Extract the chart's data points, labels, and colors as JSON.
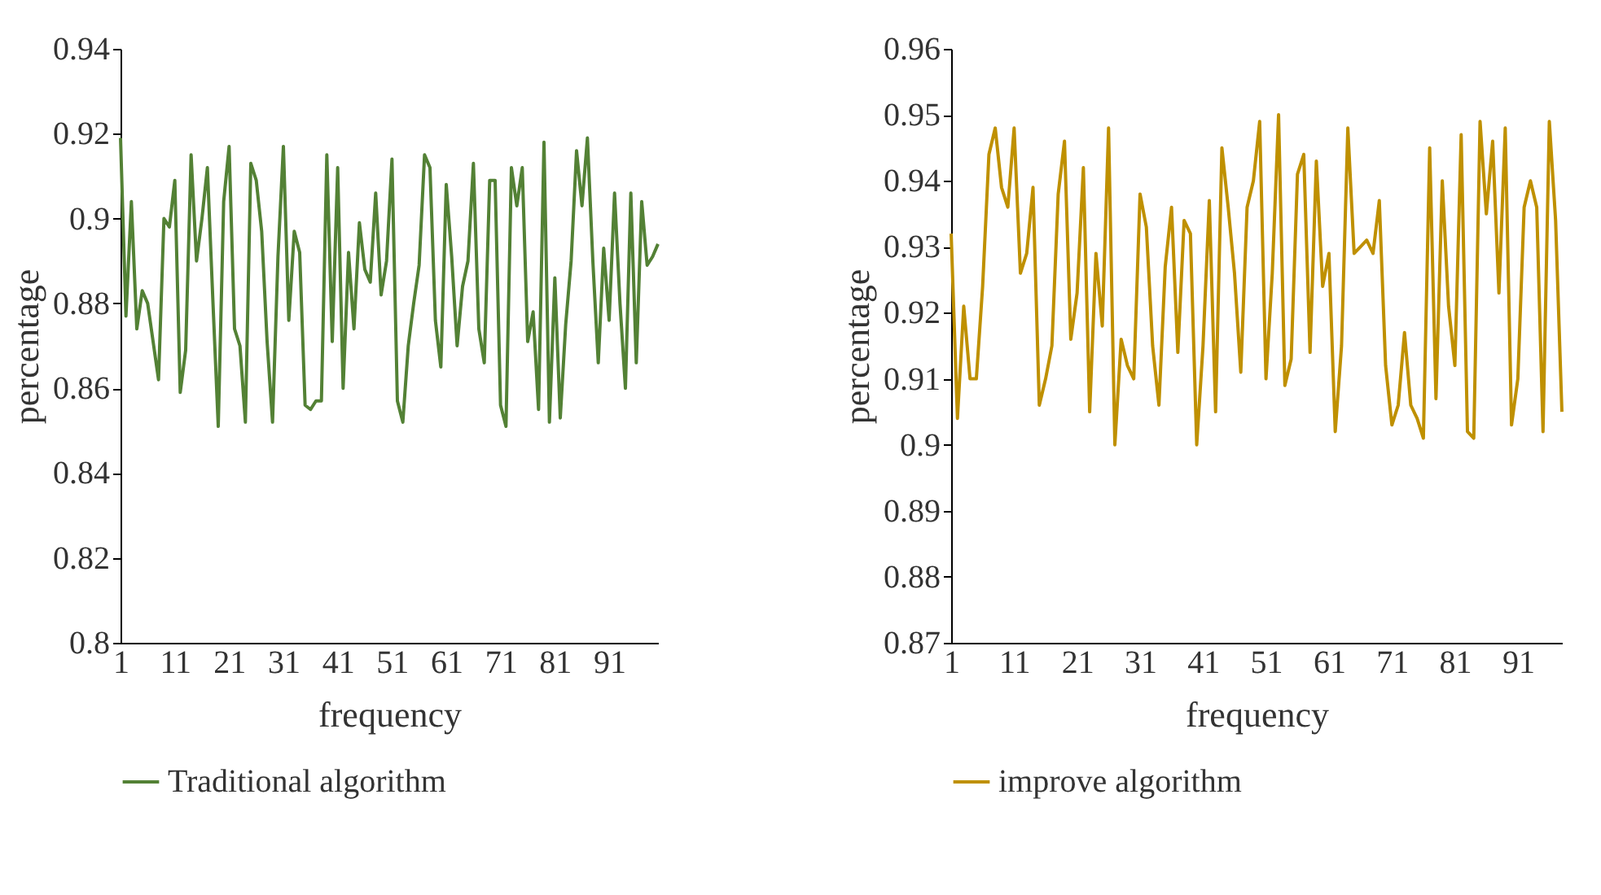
{
  "chart_data": [
    {
      "type": "line",
      "xlabel": "frequency",
      "ylabel": "percentage",
      "legend": "bottom",
      "grid": false,
      "marker": "none",
      "line_style": "solid",
      "categories": [
        "1",
        null,
        null,
        null,
        null,
        null,
        null,
        null,
        null,
        null,
        "11",
        null,
        null,
        null,
        null,
        null,
        null,
        null,
        null,
        null,
        "21",
        null,
        null,
        null,
        null,
        null,
        null,
        null,
        null,
        null,
        "31",
        null,
        null,
        null,
        null,
        null,
        null,
        null,
        null,
        null,
        "41",
        null,
        null,
        null,
        null,
        null,
        null,
        null,
        null,
        null,
        "51",
        null,
        null,
        null,
        null,
        null,
        null,
        null,
        null,
        null,
        "61",
        null,
        null,
        null,
        null,
        null,
        null,
        null,
        null,
        null,
        "71",
        null,
        null,
        null,
        null,
        null,
        null,
        null,
        null,
        null,
        "81",
        null,
        null,
        null,
        null,
        null,
        null,
        null,
        null,
        null,
        "91",
        null,
        null,
        null,
        null,
        null,
        null,
        null,
        null,
        null
      ],
      "ylim": [
        0.8,
        0.94
      ],
      "yticks": [
        0.8,
        0.82,
        0.84,
        0.86,
        0.88,
        0.9,
        0.92,
        0.94
      ],
      "series": [
        {
          "name": "Traditional algorithm",
          "color": "#538135",
          "values": [
            0.919,
            0.877,
            0.904,
            0.874,
            0.883,
            0.88,
            0.871,
            0.862,
            0.9,
            0.898,
            0.909,
            0.859,
            0.869,
            0.915,
            0.89,
            0.9,
            0.912,
            0.881,
            0.851,
            0.904,
            0.917,
            0.874,
            0.87,
            0.852,
            0.913,
            0.909,
            0.897,
            0.871,
            0.852,
            0.891,
            0.917,
            0.876,
            0.897,
            0.892,
            0.856,
            0.855,
            0.857,
            0.857,
            0.915,
            0.871,
            0.912,
            0.86,
            0.892,
            0.874,
            0.899,
            0.888,
            0.885,
            0.906,
            0.882,
            0.89,
            0.914,
            0.857,
            0.852,
            0.87,
            0.88,
            0.889,
            0.915,
            0.912,
            0.876,
            0.865,
            0.908,
            0.891,
            0.87,
            0.884,
            0.89,
            0.913,
            0.874,
            0.866,
            0.909,
            0.909,
            0.856,
            0.851,
            0.912,
            0.903,
            0.912,
            0.871,
            0.878,
            0.855,
            0.918,
            0.852,
            0.886,
            0.853,
            0.875,
            0.89,
            0.916,
            0.903,
            0.919,
            0.89,
            0.866,
            0.893,
            0.876,
            0.906,
            0.88,
            0.86,
            0.906,
            0.866,
            0.904,
            0.889,
            0.891,
            0.894
          ]
        }
      ]
    },
    {
      "type": "line",
      "xlabel": "frequency",
      "ylabel": "percentage",
      "legend": "bottom",
      "grid": false,
      "marker": "none",
      "line_style": "solid",
      "categories": [
        "1",
        null,
        null,
        null,
        null,
        null,
        null,
        null,
        null,
        null,
        "11",
        null,
        null,
        null,
        null,
        null,
        null,
        null,
        null,
        null,
        "21",
        null,
        null,
        null,
        null,
        null,
        null,
        null,
        null,
        null,
        "31",
        null,
        null,
        null,
        null,
        null,
        null,
        null,
        null,
        null,
        "41",
        null,
        null,
        null,
        null,
        null,
        null,
        null,
        null,
        null,
        "51",
        null,
        null,
        null,
        null,
        null,
        null,
        null,
        null,
        null,
        "61",
        null,
        null,
        null,
        null,
        null,
        null,
        null,
        null,
        null,
        "71",
        null,
        null,
        null,
        null,
        null,
        null,
        null,
        null,
        null,
        "81",
        null,
        null,
        null,
        null,
        null,
        null,
        null,
        null,
        null,
        "91",
        null,
        null,
        null,
        null,
        null,
        null,
        null
      ],
      "ylim": [
        0.87,
        0.96
      ],
      "yticks": [
        0.87,
        0.88,
        0.89,
        0.9,
        0.91,
        0.92,
        0.93,
        0.94,
        0.95,
        0.96
      ],
      "series": [
        {
          "name": "improve algorithm",
          "color": "#bf9000",
          "values": [
            0.932,
            0.904,
            0.921,
            0.91,
            0.91,
            0.924,
            0.944,
            0.948,
            0.939,
            0.936,
            0.948,
            0.926,
            0.929,
            0.939,
            0.906,
            0.91,
            0.915,
            0.938,
            0.946,
            0.916,
            0.923,
            0.942,
            0.905,
            0.929,
            0.918,
            0.948,
            0.9,
            0.916,
            0.912,
            0.91,
            0.938,
            0.933,
            0.915,
            0.906,
            0.927,
            0.936,
            0.914,
            0.934,
            0.932,
            0.9,
            0.915,
            0.937,
            0.905,
            0.945,
            0.936,
            0.926,
            0.911,
            0.936,
            0.94,
            0.949,
            0.91,
            0.926,
            0.95,
            0.909,
            0.913,
            0.941,
            0.944,
            0.914,
            0.943,
            0.924,
            0.929,
            0.902,
            0.915,
            0.948,
            0.929,
            0.93,
            0.931,
            0.929,
            0.937,
            0.912,
            0.903,
            0.906,
            0.917,
            0.906,
            0.904,
            0.901,
            0.945,
            0.907,
            0.94,
            0.921,
            0.912,
            0.947,
            0.902,
            0.901,
            0.949,
            0.935,
            0.946,
            0.923,
            0.948,
            0.903,
            0.91,
            0.936,
            0.94,
            0.936,
            0.902,
            0.949,
            0.934,
            0.905
          ]
        }
      ]
    }
  ]
}
